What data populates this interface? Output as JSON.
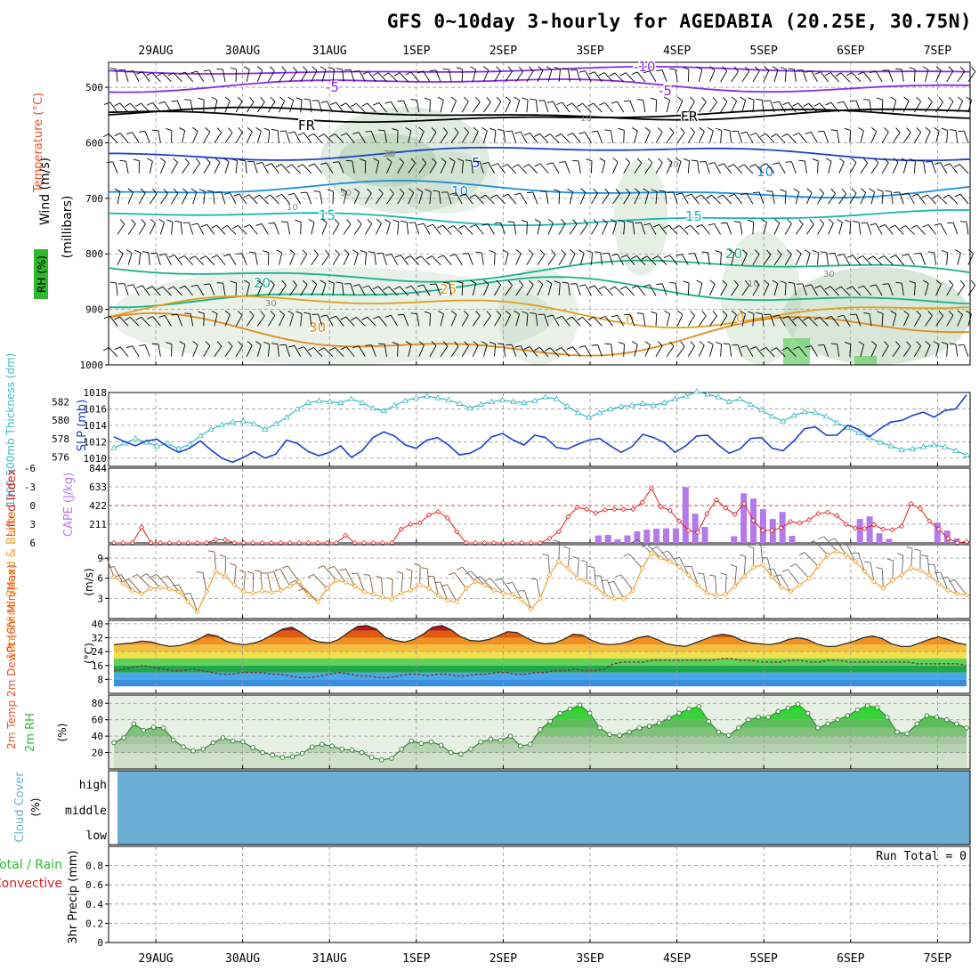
{
  "title": "GFS 0~10day 3-hourly for AGEDABIA (20.25E, 30.75N)",
  "dates": [
    "29AUG",
    "30AUG",
    "31AUG",
    "1SEP",
    "2SEP",
    "3SEP",
    "4SEP",
    "5SEP",
    "6SEP",
    "7SEP"
  ],
  "colors": {
    "temp_label": "#e8502a",
    "rh_label": "#2fb82f",
    "wind_label": "#000000",
    "thickness": "#3ab8c0",
    "slp": "#1f3fc8",
    "cape": "#b57aea",
    "li": "#e02020",
    "wind10": "#f0a030",
    "cloud": "#6aaed6",
    "rain_total": "#2fb82f",
    "rain_conv": "#e02020"
  },
  "panels": {
    "upper": {
      "ylabels": [
        "Wind (m/s)",
        "Temperature (°C)",
        "RH (%)"
      ],
      "yunit": "(millibars)",
      "yticks": [
        500,
        600,
        700,
        800,
        900,
        1000
      ],
      "isotherm_labels": [
        "-10",
        "-5",
        "-5",
        "FR",
        "FR",
        "5",
        "10",
        "10",
        "15",
        "15",
        "20",
        "20",
        "25",
        "30",
        "0",
        "0"
      ],
      "rh_labels": [
        "10",
        "10",
        "30",
        "30",
        "30",
        "30",
        "50",
        "30",
        "10"
      ]
    },
    "thickness": {
      "ylabel_left": "1000-500mb Thickness (dm)",
      "ylabel_right": "SLP (mb)",
      "yticks_thk": [
        576,
        578,
        580,
        582
      ],
      "yticks_slp": [
        1010,
        1012,
        1014,
        1016,
        1018
      ]
    },
    "cape": {
      "ylabel_li": "Lifted Index",
      "ylabel_cape": "CAPE (J/kg)",
      "yticks_li": [
        "-6",
        "-3",
        "0",
        "3",
        "6"
      ],
      "yticks_cape": [
        844,
        633,
        422,
        211
      ]
    },
    "wind": {
      "ylabel": "10m Wind Speed & Barbs",
      "yunit": "(m/s)",
      "yticks": [
        3,
        6,
        9
      ]
    },
    "temp": {
      "ylabel": "2m Temp 2m DewPt (6hr Min/Max)",
      "yunit": "(°C)",
      "yticks": [
        8,
        16,
        24,
        32,
        40
      ]
    },
    "rh": {
      "ylabel": "2m RH",
      "yunit": "(%)",
      "yticks": [
        20,
        40,
        60,
        80
      ]
    },
    "cloud": {
      "ylabel": "Cloud Cover",
      "yunit": "(%)",
      "levels": [
        "high",
        "middle",
        "low"
      ]
    },
    "precip": {
      "ylabel_total": "Total / Rain",
      "ylabel_conv": "Convective",
      "ylabel": "3hr Precip (mm)",
      "yticks": [
        "0",
        "0.2",
        "0.4",
        "0.6",
        "0.8"
      ],
      "run_total_text": "Run Total = 0"
    }
  },
  "chart_data": {
    "type": "line",
    "title": "GFS 0~10day 3-hourly for AGEDABIA (20.25E, 30.75N)",
    "time_steps": "3-hourly",
    "x_dates": [
      "29AUG",
      "30AUG",
      "31AUG",
      "1SEP",
      "2SEP",
      "3SEP",
      "4SEP",
      "5SEP",
      "6SEP",
      "7SEP"
    ],
    "thickness_dm": [
      577.0,
      577.5,
      578.0,
      577.6,
      577.2,
      577.5,
      576.9,
      577.4,
      578.3,
      579.0,
      579.5,
      579.8,
      579.9,
      579.6,
      579.0,
      579.6,
      580.3,
      581.2,
      581.9,
      582.1,
      582.0,
      581.9,
      582.3,
      581.9,
      581.3,
      581.0,
      581.6,
      582.1,
      582.4,
      582.6,
      582.4,
      582.2,
      581.8,
      581.3,
      581.7,
      582.0,
      582.2,
      582.0,
      581.9,
      582.1,
      582.5,
      582.3,
      581.5,
      580.8,
      580.3,
      580.8,
      581.2,
      581.5,
      581.6,
      581.8,
      581.6,
      581.9,
      582.3,
      582.6,
      583.1,
      582.8,
      582.5,
      582.0,
      582.3,
      581.7,
      581.1,
      580.4,
      579.9,
      580.5,
      580.9,
      580.8,
      580.4,
      579.7,
      579.2,
      578.6,
      578.1,
      577.6,
      577.2,
      576.8,
      576.9,
      577.1,
      577.3,
      577.1,
      576.7,
      576.2
    ],
    "slp_mb": [
      1012.6,
      1012.0,
      1011.5,
      1012.1,
      1012.3,
      1011.4,
      1010.7,
      1011.2,
      1012.1,
      1011.0,
      1010.0,
      1009.5,
      1010.1,
      1010.8,
      1010.0,
      1010.5,
      1012.2,
      1011.8,
      1010.8,
      1010.3,
      1010.7,
      1011.5,
      1010.1,
      1010.9,
      1012.5,
      1013.2,
      1012.7,
      1011.6,
      1011.2,
      1012.2,
      1012.5,
      1011.6,
      1010.4,
      1010.6,
      1011.3,
      1012.6,
      1013.0,
      1012.2,
      1011.6,
      1012.8,
      1012.5,
      1011.3,
      1011.1,
      1011.7,
      1012.2,
      1012.4,
      1011.5,
      1010.7,
      1011.4,
      1012.9,
      1012.5,
      1011.9,
      1010.7,
      1011.5,
      1012.7,
      1012.8,
      1011.6,
      1010.6,
      1011.1,
      1012.4,
      1012.5,
      1011.2,
      1010.9,
      1012.1,
      1013.6,
      1013.8,
      1012.8,
      1012.8,
      1014.0,
      1013.5,
      1012.6,
      1013.6,
      1014.4,
      1014.6,
      1015.2,
      1015.6,
      1015.0,
      1015.8,
      1016.0,
      1017.7
    ],
    "cape_jkg": [
      0,
      0,
      0,
      0,
      0,
      0,
      0,
      0,
      0,
      0,
      0,
      0,
      0,
      0,
      0,
      0,
      0,
      0,
      0,
      0,
      0,
      0,
      0,
      0,
      0,
      0,
      0,
      0,
      0,
      0,
      0,
      0,
      0,
      0,
      0,
      0,
      0,
      0,
      0,
      0,
      0,
      0,
      0,
      0,
      0,
      0,
      0,
      0,
      0,
      0,
      85,
      90,
      40,
      85,
      130,
      150,
      160,
      165,
      165,
      630,
      330,
      180,
      0,
      0,
      75,
      560,
      500,
      380,
      270,
      350,
      80,
      0,
      0,
      0,
      0,
      0,
      0,
      270,
      300,
      110,
      45,
      0,
      0,
      0,
      0,
      230,
      140,
      50,
      0
    ],
    "lifted_index": [
      6,
      6,
      6,
      3.5,
      6,
      6,
      6,
      6,
      6,
      6,
      6,
      5.5,
      5.5,
      6,
      6,
      6,
      6,
      6,
      6,
      6,
      6,
      6,
      6,
      6,
      6,
      4.8,
      6,
      6,
      6,
      6,
      6,
      3.8,
      3,
      2.8,
      1.5,
      1,
      2,
      4.2,
      6,
      6,
      6,
      6,
      6,
      6,
      6,
      6,
      6,
      5.3,
      4.2,
      1.8,
      0.3,
      0.6,
      1.2,
      0.7,
      0.6,
      0.6,
      0.6,
      -0.5,
      -2.8,
      0.2,
      0.8,
      2.5,
      4,
      4.3,
      1.3,
      -0.9,
      0.4,
      1.4,
      -0.3,
      2.4,
      4,
      4,
      3.6,
      2.6,
      2.8,
      2.3,
      1.3,
      1.1,
      1.6,
      3,
      3.6,
      3.7,
      3.1,
      3.8,
      3.9,
      3.3,
      -0.3,
      0.5,
      2.5,
      3.8,
      5.3,
      6,
      5.8
    ],
    "wind10_ms": [
      6.2,
      5.2,
      4.2,
      3.7,
      4.5,
      4.6,
      4.4,
      4.0,
      2.5,
      1.0,
      4.0,
      7.0,
      6.3,
      5.0,
      4.0,
      3.8,
      4.1,
      3.9,
      4.2,
      4.8,
      5.5,
      3.5,
      2.5,
      4.5,
      5.7,
      5.4,
      4.8,
      4.0,
      3.6,
      3.2,
      2.9,
      3.8,
      4.2,
      5.0,
      4.5,
      3.4,
      2.7,
      2.5,
      4.5,
      5.5,
      5.0,
      4.2,
      3.8,
      3.6,
      2.8,
      1.4,
      3.0,
      6.5,
      8.5,
      7.5,
      6.0,
      5.5,
      4.7,
      3.5,
      3.0,
      3.0,
      4.2,
      7.5,
      9.7,
      9.0,
      8.5,
      7.7,
      6.5,
      5.0,
      3.8,
      3.4,
      3.6,
      4.8,
      6.3,
      7.6,
      8.0,
      6.2,
      4.7,
      4.0,
      5.0,
      6.0,
      7.8,
      9.5,
      10.0,
      9.5,
      8.5,
      7.0,
      5.5,
      4.5,
      5.7,
      6.5,
      7.5,
      7.2,
      6.4,
      5.2,
      4.2,
      3.7,
      3.5
    ],
    "temp2m_c": [
      28,
      28.5,
      29,
      30,
      29.5,
      28,
      27,
      27.5,
      29,
      31,
      34,
      33,
      30,
      28.5,
      28,
      29,
      31,
      34,
      37,
      38,
      35,
      31,
      29.5,
      29,
      31,
      35,
      38.5,
      39,
      37,
      32,
      30.5,
      29.5,
      31,
      34,
      38,
      39,
      36.5,
      32.5,
      30.5,
      30,
      31,
      33,
      35.5,
      35,
      32,
      29.5,
      28.5,
      29,
      31,
      34,
      33.5,
      30.5,
      28.5,
      28,
      28.5,
      30,
      32,
      33,
      31,
      28.5,
      27.5,
      27,
      29,
      31,
      33,
      34,
      33,
      30.5,
      29,
      28.5,
      28,
      29,
      31,
      32,
      31,
      28.5,
      27,
      27,
      28.5,
      30,
      32,
      33,
      31.5,
      28.5,
      27,
      27,
      29,
      31,
      32.5,
      31,
      29,
      28
    ],
    "dewpt2m_c": [
      13,
      14,
      15,
      16,
      15,
      14,
      13,
      13,
      14,
      13,
      12,
      11,
      11,
      12,
      12,
      12,
      11,
      11,
      10,
      9,
      9,
      10,
      11,
      12,
      11,
      10,
      10,
      9,
      9,
      10,
      11,
      11,
      10,
      11,
      11,
      10,
      10,
      11,
      11,
      12,
      12,
      11,
      11,
      12,
      12,
      13,
      13,
      14,
      13,
      13,
      14,
      17,
      18,
      18,
      18,
      19,
      19,
      19,
      19,
      19,
      19,
      19,
      20,
      20,
      19,
      19,
      18,
      18,
      18,
      19,
      19,
      18,
      18,
      19,
      19,
      18,
      18,
      18,
      18,
      18,
      18,
      18,
      17,
      17,
      17,
      17,
      17,
      16
    ],
    "rh2m_pct": [
      32,
      38,
      55,
      47,
      51,
      50,
      35,
      27,
      22,
      24,
      32,
      38,
      34,
      33,
      26,
      20,
      17,
      14,
      15,
      19,
      27,
      30,
      28,
      24,
      23,
      20,
      14,
      11,
      13,
      24,
      34,
      31,
      33,
      29,
      20,
      18,
      24,
      33,
      36,
      35,
      40,
      28,
      30,
      48,
      58,
      68,
      73,
      78,
      68,
      50,
      42,
      41,
      45,
      50,
      52,
      56,
      62,
      68,
      73,
      76,
      58,
      45,
      41,
      50,
      60,
      63,
      63,
      70,
      74,
      79,
      68,
      50,
      55,
      60,
      65,
      72,
      77,
      75,
      63,
      45,
      43,
      55,
      65,
      63,
      60,
      55,
      50
    ],
    "precip_mm": [],
    "run_total_mm": 0,
    "cloud_cover_pct": {
      "high": 100,
      "middle": 100,
      "low": 100
    },
    "ylim_thickness": [
      575,
      583
    ],
    "ylim_slp": [
      1009,
      1018
    ],
    "ylim_cape": [
      0,
      844
    ],
    "ylim_li": [
      6,
      -6
    ],
    "ylim_wind": [
      0,
      11
    ],
    "ylim_temp": [
      0,
      42
    ],
    "ylim_rh": [
      0,
      90
    ],
    "ylim_precip": [
      0,
      1
    ]
  }
}
